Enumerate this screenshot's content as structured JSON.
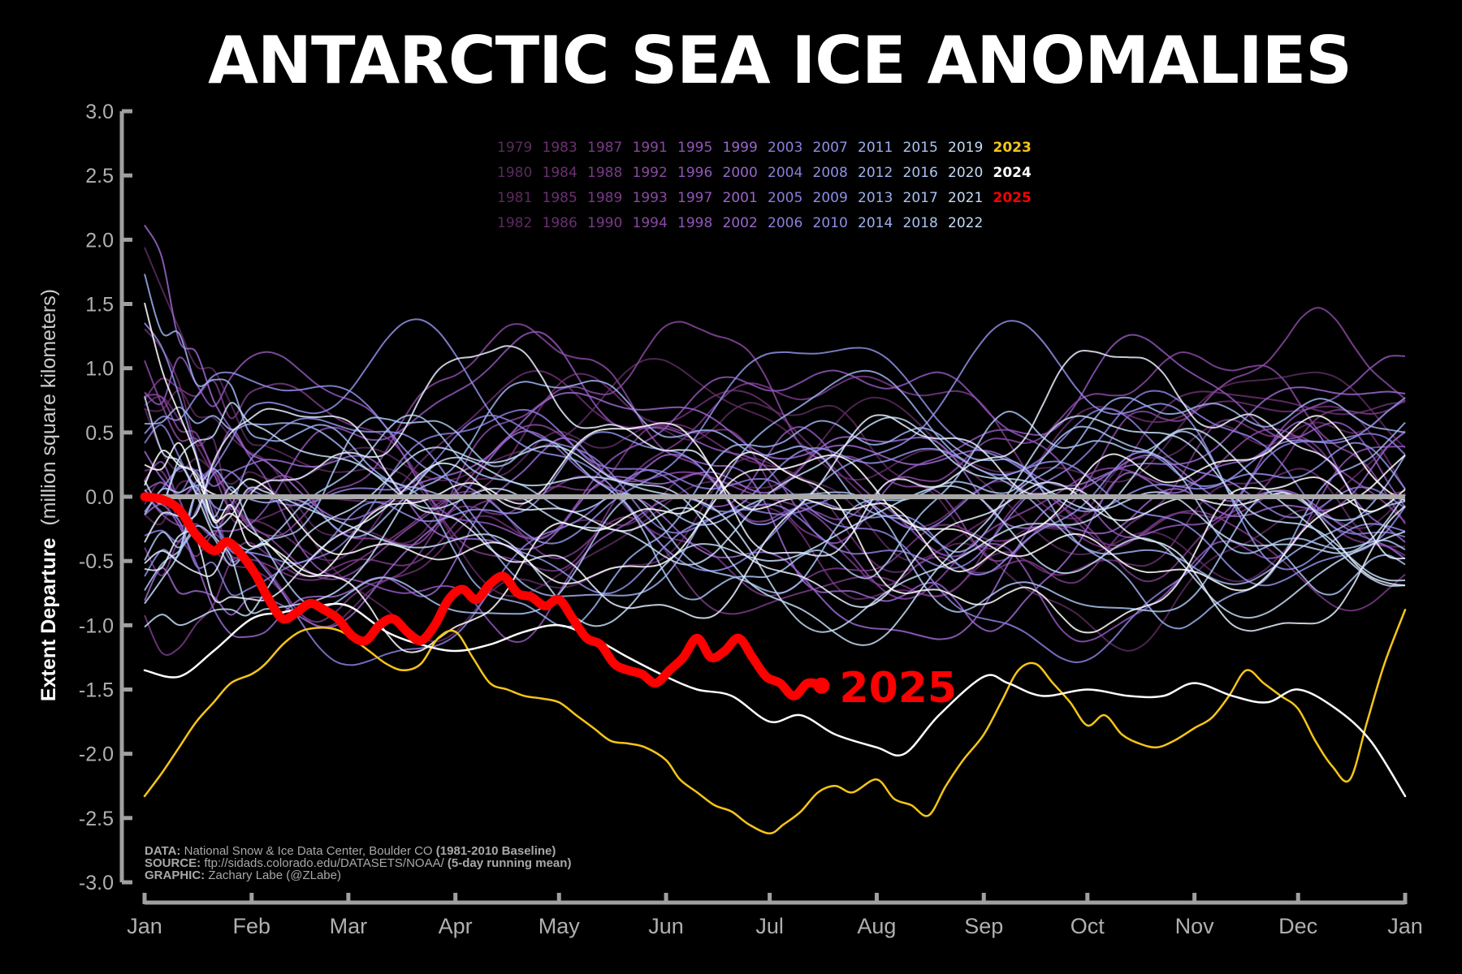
{
  "title": "ANTARCTIC SEA ICE ANOMALIES",
  "chart_data": {
    "type": "line",
    "title": "ANTARCTIC SEA ICE ANOMALIES",
    "ylabel_bold": "Extent Departure",
    "ylabel_rest": "(million square kilometers)",
    "xlabel": "",
    "ylim": [
      -3.0,
      3.0
    ],
    "yticks": [
      3.0,
      2.5,
      2.0,
      1.5,
      1.0,
      0.5,
      0.0,
      -0.5,
      -1.0,
      -1.5,
      -2.0,
      -2.5,
      -3.0
    ],
    "ytick_labels": [
      "3.0",
      "2.5",
      "2.0",
      "1.5",
      "1.0",
      "0.5",
      "0.0",
      "-0.5",
      "-1.0",
      "-1.5",
      "-2.0",
      "-2.5",
      "-3.0"
    ],
    "xlim_days": [
      0,
      365
    ],
    "month_starts": [
      0,
      31,
      59,
      90,
      120,
      151,
      181,
      212,
      243,
      273,
      304,
      334,
      365
    ],
    "month_labels": [
      "Jan",
      "Feb",
      "Mar",
      "Apr",
      "May",
      "Jun",
      "Jul",
      "Aug",
      "Sep",
      "Oct",
      "Nov",
      "Dec",
      "Jan"
    ],
    "zero_line_color": "#a9a9a9",
    "legend_years": [
      [
        "1979",
        "1983",
        "1987",
        "1991",
        "1995",
        "1999",
        "2003",
        "2007",
        "2011",
        "2015",
        "2019",
        "2023"
      ],
      [
        "1980",
        "1984",
        "1988",
        "1992",
        "1996",
        "2000",
        "2004",
        "2008",
        "2012",
        "2016",
        "2020",
        "2024"
      ],
      [
        "1981",
        "1985",
        "1989",
        "1993",
        "1997",
        "2001",
        "2005",
        "2009",
        "2013",
        "2017",
        "2021",
        "2025"
      ],
      [
        "1982",
        "1986",
        "1990",
        "1994",
        "1998",
        "2002",
        "2006",
        "2010",
        "2014",
        "2018",
        "2022"
      ]
    ],
    "highlight_colors": {
      "2023": "#f5c518",
      "2024": "#ffffff",
      "2025": "#ff0000"
    },
    "series": [
      {
        "name": "2023",
        "color": "#f5c518",
        "x": [
          0,
          5,
          10,
          15,
          20,
          25,
          31,
          35,
          40,
          45,
          50,
          55,
          59,
          65,
          70,
          75,
          80,
          85,
          90,
          95,
          100,
          105,
          110,
          115,
          120,
          125,
          130,
          135,
          140,
          145,
          151,
          155,
          160,
          165,
          170,
          175,
          181,
          185,
          190,
          195,
          200,
          205,
          212,
          217,
          222,
          227,
          232,
          237,
          243,
          248,
          253,
          258,
          263,
          268,
          273,
          278,
          283,
          288,
          293,
          298,
          304,
          309,
          314,
          319,
          324,
          329,
          334,
          339,
          344,
          349,
          354,
          359,
          365
        ],
        "y": [
          -2.33,
          -2.15,
          -1.95,
          -1.75,
          -1.6,
          -1.45,
          -1.38,
          -1.3,
          -1.15,
          -1.05,
          -1.02,
          -1.03,
          -1.08,
          -1.2,
          -1.3,
          -1.35,
          -1.3,
          -1.1,
          -1.05,
          -1.25,
          -1.45,
          -1.5,
          -1.55,
          -1.57,
          -1.6,
          -1.7,
          -1.8,
          -1.9,
          -1.92,
          -1.95,
          -2.05,
          -2.2,
          -2.3,
          -2.4,
          -2.45,
          -2.55,
          -2.62,
          -2.55,
          -2.45,
          -2.3,
          -2.25,
          -2.3,
          -2.2,
          -2.35,
          -2.4,
          -2.48,
          -2.25,
          -2.05,
          -1.85,
          -1.6,
          -1.35,
          -1.3,
          -1.45,
          -1.6,
          -1.78,
          -1.7,
          -1.85,
          -1.92,
          -1.95,
          -1.9,
          -1.8,
          -1.72,
          -1.55,
          -1.35,
          -1.45,
          -1.55,
          -1.65,
          -1.9,
          -2.1,
          -2.2,
          -1.75,
          -1.3,
          -0.88
        ]
      },
      {
        "name": "2024",
        "color": "#ffffff",
        "x": [
          0,
          10,
          20,
          31,
          40,
          50,
          59,
          70,
          80,
          90,
          100,
          110,
          120,
          130,
          140,
          151,
          160,
          170,
          181,
          190,
          200,
          212,
          220,
          230,
          243,
          250,
          260,
          273,
          285,
          295,
          304,
          315,
          325,
          334,
          345,
          355,
          365
        ],
        "y": [
          -1.35,
          -1.4,
          -1.2,
          -0.95,
          -0.9,
          -0.85,
          -0.85,
          -1.05,
          -1.15,
          -1.2,
          -1.15,
          -1.05,
          -1.0,
          -1.1,
          -1.25,
          -1.4,
          -1.5,
          -1.55,
          -1.75,
          -1.7,
          -1.85,
          -1.95,
          -2.0,
          -1.7,
          -1.4,
          -1.45,
          -1.55,
          -1.5,
          -1.55,
          -1.55,
          -1.45,
          -1.55,
          -1.6,
          -1.5,
          -1.65,
          -1.9,
          -2.33
        ]
      },
      {
        "name": "2025",
        "color": "#ff0000",
        "x": [
          0,
          5,
          10,
          15,
          20,
          24,
          28,
          32,
          36,
          40,
          44,
          48,
          52,
          56,
          60,
          64,
          68,
          72,
          76,
          80,
          84,
          88,
          92,
          96,
          100,
          104,
          108,
          112,
          116,
          120,
          124,
          128,
          132,
          136,
          140,
          144,
          148,
          152,
          156,
          160,
          164,
          168,
          172,
          176,
          180,
          184,
          188,
          192,
          196
        ],
        "y": [
          0.0,
          -0.02,
          -0.1,
          -0.3,
          -0.42,
          -0.35,
          -0.45,
          -0.6,
          -0.8,
          -0.95,
          -0.9,
          -0.83,
          -0.88,
          -0.95,
          -1.08,
          -1.12,
          -1.0,
          -0.95,
          -1.05,
          -1.12,
          -1.0,
          -0.8,
          -0.72,
          -0.8,
          -0.68,
          -0.62,
          -0.75,
          -0.78,
          -0.85,
          -0.8,
          -0.95,
          -1.1,
          -1.15,
          -1.3,
          -1.35,
          -1.38,
          -1.45,
          -1.35,
          -1.25,
          -1.1,
          -1.25,
          -1.2,
          -1.1,
          -1.25,
          -1.4,
          -1.45,
          -1.55,
          -1.45,
          -1.47
        ]
      }
    ],
    "end_label": "2025",
    "background_years_note": "1979-2022 climatology spaghetti lines",
    "source_lines": [
      {
        "label": "DATA:",
        "text": "National Snow & Ice Data Center, Boulder CO",
        "extra": "(1981-2010 Baseline)"
      },
      {
        "label": "SOURCE:",
        "text": "ftp://sidads.colorado.edu/DATASETS/NOAA/",
        "extra": "(5-day running mean)"
      },
      {
        "label": "GRAPHIC:",
        "text": "Zachary Labe (@ZLabe)",
        "extra": ""
      }
    ]
  }
}
